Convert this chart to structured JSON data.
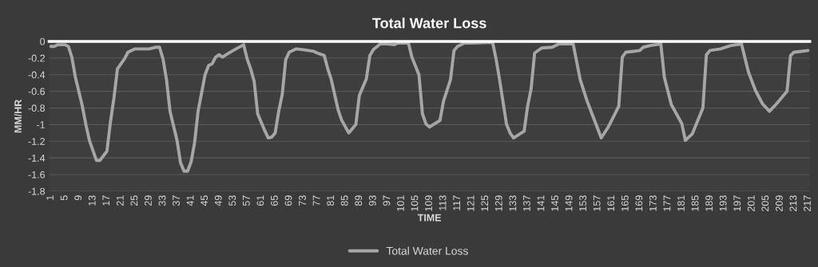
{
  "chart_data": {
    "type": "line",
    "title": "Total Water Loss",
    "xlabel": "TIME",
    "ylabel": "MM/HR",
    "x": [
      1,
      2,
      3,
      5,
      6,
      7,
      8,
      10,
      11,
      12,
      14,
      15,
      17,
      18,
      19,
      20,
      22,
      23,
      25,
      29,
      31,
      32,
      33,
      34,
      35,
      37,
      38,
      39,
      40,
      41,
      42,
      43,
      45,
      46,
      47,
      48,
      49,
      50,
      51,
      53,
      56,
      57,
      58,
      59,
      60,
      62,
      63,
      64,
      65,
      66,
      67,
      68,
      69,
      71,
      73,
      76,
      77,
      79,
      80,
      81,
      83,
      84,
      86,
      88,
      89,
      91,
      92,
      93,
      95,
      97,
      99,
      100,
      103,
      104,
      106,
      107,
      108,
      109,
      112,
      113,
      115,
      116,
      117,
      119,
      121,
      127,
      128,
      129,
      131,
      132,
      133,
      136,
      137,
      138,
      139,
      141,
      144,
      146,
      150,
      152,
      154,
      156,
      158,
      160,
      163,
      164,
      165,
      167,
      169,
      170,
      172,
      175,
      176,
      178,
      181,
      182,
      184,
      187,
      188,
      189,
      192,
      195,
      198,
      200,
      202,
      204,
      206,
      208,
      211,
      212,
      213,
      215,
      217
    ],
    "series": [
      {
        "name": "Total Water Loss",
        "color": "#a6a6a6",
        "values": [
          -0.06,
          -0.06,
          -0.04,
          -0.04,
          -0.06,
          -0.19,
          -0.43,
          -0.78,
          -1.0,
          -1.19,
          -1.43,
          -1.43,
          -1.32,
          -0.97,
          -0.68,
          -0.33,
          -0.21,
          -0.13,
          -0.09,
          -0.09,
          -0.07,
          -0.07,
          -0.21,
          -0.46,
          -0.84,
          -1.19,
          -1.46,
          -1.56,
          -1.56,
          -1.45,
          -1.22,
          -0.84,
          -0.4,
          -0.29,
          -0.27,
          -0.19,
          -0.16,
          -0.19,
          -0.16,
          -0.11,
          -0.04,
          -0.21,
          -0.33,
          -0.48,
          -0.87,
          -1.07,
          -1.16,
          -1.15,
          -1.1,
          -0.84,
          -0.64,
          -0.22,
          -0.13,
          -0.09,
          -0.1,
          -0.12,
          -0.14,
          -0.17,
          -0.33,
          -0.46,
          -0.83,
          -0.95,
          -1.1,
          -1.0,
          -0.65,
          -0.45,
          -0.17,
          -0.1,
          -0.03,
          -0.03,
          -0.04,
          -0.02,
          -0.02,
          -0.19,
          -0.4,
          -0.87,
          -0.99,
          -1.03,
          -0.95,
          -0.72,
          -0.46,
          -0.11,
          -0.06,
          -0.02,
          -0.02,
          -0.01,
          -0.21,
          -0.46,
          -1.0,
          -1.1,
          -1.16,
          -1.08,
          -0.78,
          -0.57,
          -0.14,
          -0.08,
          -0.07,
          -0.03,
          -0.03,
          -0.46,
          -0.72,
          -0.94,
          -1.16,
          -1.03,
          -0.78,
          -0.19,
          -0.13,
          -0.12,
          -0.11,
          -0.07,
          -0.05,
          -0.03,
          -0.43,
          -0.76,
          -0.99,
          -1.19,
          -1.11,
          -0.8,
          -0.16,
          -0.11,
          -0.09,
          -0.05,
          -0.03,
          -0.37,
          -0.59,
          -0.75,
          -0.84,
          -0.75,
          -0.6,
          -0.17,
          -0.13,
          -0.12,
          -0.11
        ]
      }
    ],
    "xlim": [
      0.5,
      217.5
    ],
    "xticks": [
      1,
      5,
      9,
      13,
      17,
      21,
      25,
      29,
      33,
      37,
      41,
      45,
      49,
      53,
      57,
      61,
      65,
      69,
      73,
      77,
      81,
      85,
      89,
      93,
      97,
      101,
      105,
      109,
      113,
      117,
      121,
      125,
      129,
      133,
      137,
      141,
      145,
      149,
      153,
      157,
      161,
      165,
      169,
      173,
      177,
      181,
      185,
      189,
      193,
      197,
      201,
      205,
      209,
      213,
      217
    ],
    "ylim": [
      -1.8,
      0
    ],
    "yticks": [
      0,
      -0.2,
      -0.4,
      -0.6,
      -0.8,
      -1,
      -1.2,
      -1.4,
      -1.6,
      -1.8
    ],
    "grid": "y",
    "legend": "bottom",
    "marker": "none",
    "line_style": "solid"
  }
}
